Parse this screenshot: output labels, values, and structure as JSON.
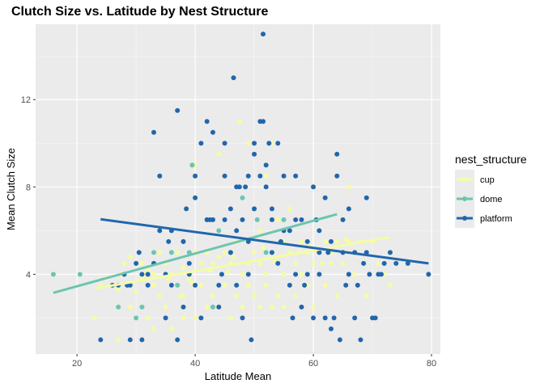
{
  "chart_data": {
    "type": "scatter",
    "title": "Clutch Size vs. Latitude by Nest Structure",
    "xlabel": "Latitude Mean",
    "ylabel": "Mean Clutch Size",
    "xlim": [
      13,
      81.5
    ],
    "ylim": [
      0.35,
      15.45
    ],
    "x_ticks": [
      20,
      40,
      60,
      80
    ],
    "y_ticks": [
      4,
      8,
      12
    ],
    "grid": true,
    "legend": {
      "title": "nest_structure",
      "placement": "right"
    },
    "series": [
      {
        "name": "cup",
        "color": "#f4fca5",
        "points": [
          [
            23,
            2
          ],
          [
            24,
            3.5
          ],
          [
            25,
            3.8
          ],
          [
            26,
            3.5
          ],
          [
            27,
            1
          ],
          [
            27,
            3.3
          ],
          [
            28,
            4.5
          ],
          [
            29,
            2.5
          ],
          [
            29,
            4.8
          ],
          [
            30,
            3.2
          ],
          [
            30,
            2
          ],
          [
            31,
            4.5
          ],
          [
            31,
            3.8
          ],
          [
            32,
            2
          ],
          [
            32,
            4.2
          ],
          [
            33,
            1.5
          ],
          [
            33,
            3.5
          ],
          [
            33,
            4
          ],
          [
            34,
            5
          ],
          [
            34,
            3
          ],
          [
            35,
            2.5
          ],
          [
            35,
            4.5
          ],
          [
            36,
            1.5
          ],
          [
            36,
            4
          ],
          [
            37,
            3.5
          ],
          [
            37,
            5
          ],
          [
            38,
            2
          ],
          [
            38,
            4.3
          ],
          [
            38,
            3
          ],
          [
            39,
            4.5
          ],
          [
            39,
            3.8
          ],
          [
            40,
            2
          ],
          [
            40,
            5
          ],
          [
            40,
            9
          ],
          [
            41,
            3.5
          ],
          [
            41,
            4.5
          ],
          [
            42,
            2.5
          ],
          [
            42,
            5
          ],
          [
            43,
            3
          ],
          [
            43,
            4.5
          ],
          [
            44,
            2.5
          ],
          [
            44,
            4.8
          ],
          [
            44,
            9.5
          ],
          [
            45,
            3.5
          ],
          [
            45,
            5
          ],
          [
            46,
            2
          ],
          [
            46,
            4.5
          ],
          [
            47,
            3
          ],
          [
            47,
            5.5
          ],
          [
            48,
            4
          ],
          [
            48,
            2.5
          ],
          [
            48,
            7.5
          ],
          [
            49,
            4.5
          ],
          [
            49,
            3.5
          ],
          [
            49,
            10
          ],
          [
            50,
            5
          ],
          [
            50,
            3
          ],
          [
            50,
            7
          ],
          [
            51,
            4.5
          ],
          [
            51,
            2.5
          ],
          [
            51,
            6
          ],
          [
            52,
            4
          ],
          [
            52,
            3.5
          ],
          [
            52,
            8.5
          ],
          [
            53,
            5
          ],
          [
            53,
            2.5
          ],
          [
            53,
            10
          ],
          [
            54,
            4.5
          ],
          [
            54,
            3
          ],
          [
            54,
            6.5
          ],
          [
            55,
            4
          ],
          [
            55,
            5.5
          ],
          [
            55,
            2.5
          ],
          [
            56,
            3.5
          ],
          [
            56,
            5
          ],
          [
            56,
            7
          ],
          [
            57,
            4.5
          ],
          [
            57,
            3
          ],
          [
            58,
            4
          ],
          [
            58,
            5.5
          ],
          [
            59,
            3.5
          ],
          [
            59,
            5
          ],
          [
            60,
            4.5
          ],
          [
            60,
            2.5
          ],
          [
            61,
            5
          ],
          [
            61,
            4
          ],
          [
            62,
            5.5
          ],
          [
            62,
            3.5
          ],
          [
            63,
            5
          ],
          [
            63,
            4.5
          ],
          [
            64,
            5.5
          ],
          [
            64,
            3
          ],
          [
            65,
            5
          ],
          [
            65,
            4.5
          ],
          [
            66,
            8
          ],
          [
            66,
            5.5
          ],
          [
            67,
            5
          ],
          [
            67,
            4
          ],
          [
            68,
            5.5
          ],
          [
            69,
            3
          ],
          [
            70,
            5.5
          ],
          [
            71,
            4.5
          ],
          [
            72,
            4
          ],
          [
            73,
            3.5
          ],
          [
            27.5,
            4
          ],
          [
            35.5,
            3.8
          ],
          [
            42.5,
            4.2
          ],
          [
            46.5,
            4.8
          ],
          [
            51.5,
            5.2
          ],
          [
            57.5,
            5
          ],
          [
            61.5,
            4.5
          ],
          [
            47.5,
            11
          ],
          [
            37.5,
            3
          ],
          [
            31.5,
            4
          ],
          [
            39.5,
            3.6
          ],
          [
            45.5,
            4.1
          ],
          [
            53.5,
            4.6
          ],
          [
            59.5,
            5.3
          ],
          [
            65.5,
            5.6
          ]
        ]
      },
      {
        "name": "dome",
        "color": "#6cc5b0",
        "points": [
          [
            16,
            4
          ],
          [
            20.5,
            4
          ],
          [
            27,
            2.5
          ],
          [
            30,
            2
          ],
          [
            31,
            2.5
          ],
          [
            33,
            4.5
          ],
          [
            33,
            5
          ],
          [
            35,
            4
          ],
          [
            36,
            5
          ],
          [
            37,
            3.5
          ],
          [
            38,
            5.5
          ],
          [
            39,
            5
          ],
          [
            39.5,
            9
          ],
          [
            42,
            6.5
          ],
          [
            43,
            2.5
          ],
          [
            44,
            6
          ],
          [
            46,
            5
          ],
          [
            48,
            7.5
          ],
          [
            50,
            7
          ],
          [
            50.5,
            6.5
          ],
          [
            52,
            5
          ],
          [
            55,
            6.5
          ]
        ]
      },
      {
        "name": "platform",
        "color": "#2166ac",
        "points": [
          [
            24,
            1
          ],
          [
            26,
            3.5
          ],
          [
            27,
            3.5
          ],
          [
            28,
            4
          ],
          [
            29,
            1
          ],
          [
            29,
            3.5
          ],
          [
            30,
            4.5
          ],
          [
            31,
            4
          ],
          [
            31,
            1
          ],
          [
            32,
            4
          ],
          [
            32,
            3.5
          ],
          [
            33,
            4.5
          ],
          [
            33,
            10.5
          ],
          [
            34,
            8.5
          ],
          [
            34,
            6
          ],
          [
            35,
            2
          ],
          [
            35,
            4
          ],
          [
            36,
            3.5
          ],
          [
            36,
            6
          ],
          [
            37,
            11.5
          ],
          [
            37,
            1
          ],
          [
            38,
            5.5
          ],
          [
            38,
            2.5
          ],
          [
            39,
            4.5
          ],
          [
            39,
            4
          ],
          [
            40,
            7.5
          ],
          [
            40,
            8.5
          ],
          [
            40,
            3.5
          ],
          [
            41,
            10
          ],
          [
            41,
            2
          ],
          [
            42,
            11
          ],
          [
            42,
            6.5
          ],
          [
            43,
            10.5
          ],
          [
            43,
            6.5
          ],
          [
            44,
            3.5
          ],
          [
            44,
            2.5
          ],
          [
            45,
            10
          ],
          [
            45,
            8.5
          ],
          [
            45,
            6.5
          ],
          [
            46,
            7
          ],
          [
            46,
            5
          ],
          [
            46.5,
            13
          ],
          [
            47,
            8
          ],
          [
            47,
            3.5
          ],
          [
            47.5,
            8
          ],
          [
            48,
            2
          ],
          [
            48,
            6.5
          ],
          [
            48.5,
            8
          ],
          [
            49,
            8.5
          ],
          [
            49,
            4
          ],
          [
            49.5,
            1
          ],
          [
            50,
            10
          ],
          [
            50,
            9.5
          ],
          [
            50,
            7
          ],
          [
            51,
            11
          ],
          [
            51,
            8.5
          ],
          [
            51.5,
            15
          ],
          [
            51.5,
            11
          ],
          [
            52,
            9
          ],
          [
            52,
            8
          ],
          [
            52.5,
            10
          ],
          [
            53,
            7
          ],
          [
            53,
            5
          ],
          [
            54,
            10
          ],
          [
            54,
            4.5
          ],
          [
            55,
            6
          ],
          [
            55,
            8.5
          ],
          [
            56,
            3.5
          ],
          [
            56,
            6
          ],
          [
            57,
            8.5
          ],
          [
            57,
            4
          ],
          [
            58,
            6.5
          ],
          [
            58,
            2.5
          ],
          [
            59,
            5.5
          ],
          [
            59,
            4
          ],
          [
            60,
            8
          ],
          [
            60,
            2
          ],
          [
            61,
            5
          ],
          [
            61,
            4
          ],
          [
            62,
            7.5
          ],
          [
            62,
            2
          ],
          [
            62.5,
            5
          ],
          [
            63,
            1.5
          ],
          [
            63.5,
            2
          ],
          [
            64,
            9.5
          ],
          [
            64,
            8.5
          ],
          [
            64.5,
            1
          ],
          [
            65,
            6.5
          ],
          [
            66,
            7
          ],
          [
            66,
            4
          ],
          [
            67,
            5
          ],
          [
            67.5,
            3.5
          ],
          [
            68,
            1
          ],
          [
            68.5,
            4.5
          ],
          [
            69,
            7.5
          ],
          [
            69,
            5
          ],
          [
            70,
            2
          ],
          [
            70.5,
            2
          ],
          [
            71,
            4
          ],
          [
            72,
            4.5
          ],
          [
            73,
            5
          ],
          [
            74,
            4.5
          ],
          [
            76,
            4.5
          ],
          [
            79.5,
            4
          ],
          [
            56.5,
            2
          ],
          [
            58.5,
            3.5
          ],
          [
            60.5,
            6.5
          ],
          [
            63,
            5.5
          ],
          [
            65.5,
            3.5
          ],
          [
            67,
            2
          ],
          [
            69.5,
            4
          ],
          [
            71.5,
            4
          ],
          [
            54.5,
            5.5
          ],
          [
            47,
            6
          ],
          [
            44.5,
            4
          ],
          [
            42.5,
            6.5
          ],
          [
            38.5,
            7
          ],
          [
            35.5,
            5.5
          ],
          [
            30.5,
            5
          ],
          [
            28.5,
            3.5
          ],
          [
            49,
            5.5
          ],
          [
            53,
            6.5
          ],
          [
            57,
            6.5
          ],
          [
            61,
            6
          ],
          [
            65,
            5
          ]
        ]
      }
    ],
    "trend_lines": [
      {
        "series": "cup",
        "color": "#f4fca5",
        "x": [
          23,
          73
        ],
        "y": [
          3.35,
          5.7
        ]
      },
      {
        "series": "dome",
        "color": "#6cc5b0",
        "x": [
          16,
          64
        ],
        "y": [
          3.15,
          6.75
        ]
      },
      {
        "series": "platform",
        "color": "#2166ac",
        "x": [
          24,
          79.5
        ],
        "y": [
          6.52,
          4.5
        ]
      }
    ]
  }
}
